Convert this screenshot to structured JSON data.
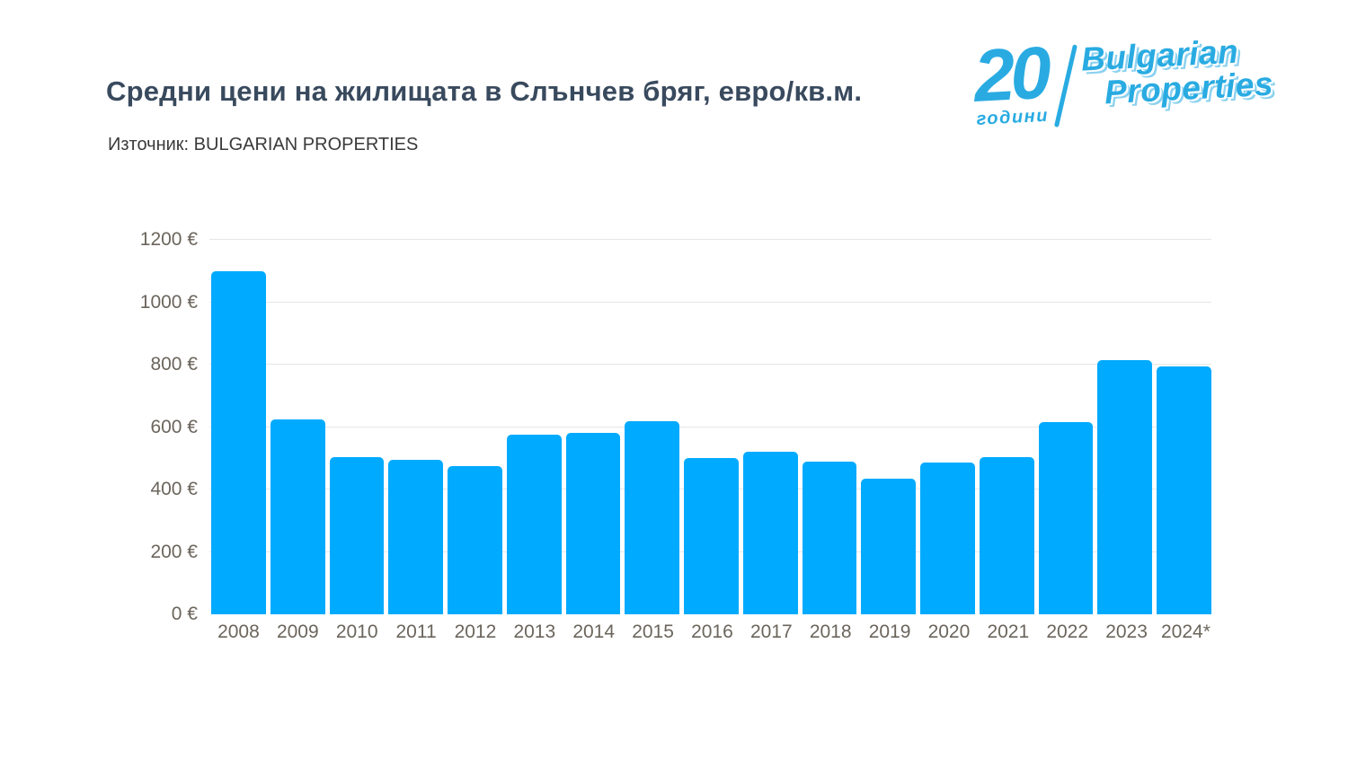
{
  "header": {
    "title": "Средни цени на жилищата в Слънчев бряг, евро/кв.м.",
    "source": "Източник: BULGARIAN PROPERTIES"
  },
  "logo": {
    "number": "20",
    "years_word": "години",
    "name_line1": "Bulgarian",
    "name_line2": "Properties",
    "color": "#29abe2"
  },
  "chart_data": {
    "type": "bar",
    "title": "Средни цени на жилищата в Слънчев бряг, евро/кв.м.",
    "source": "Източник: BULGARIAN PROPERTIES",
    "categories": [
      "2008",
      "2009",
      "2010",
      "2011",
      "2012",
      "2013",
      "2014",
      "2015",
      "2016",
      "2017",
      "2018",
      "2019",
      "2020",
      "2021",
      "2022",
      "2023",
      "2024*"
    ],
    "values": [
      1100,
      625,
      505,
      495,
      475,
      575,
      580,
      620,
      500,
      520,
      490,
      435,
      485,
      505,
      615,
      815,
      795
    ],
    "unit": "€",
    "ylabel": "",
    "xlabel": "",
    "ylim": [
      0,
      1200
    ],
    "ytick_step": 200,
    "ytick_labels": [
      "0 €",
      "200 €",
      "400 €",
      "600 €",
      "800 €",
      "1000 €",
      "1200 €"
    ],
    "bar_color": "#00aaff",
    "grid_color": "#e6e6e6",
    "grid": "horizontal",
    "legend_position": "none"
  }
}
